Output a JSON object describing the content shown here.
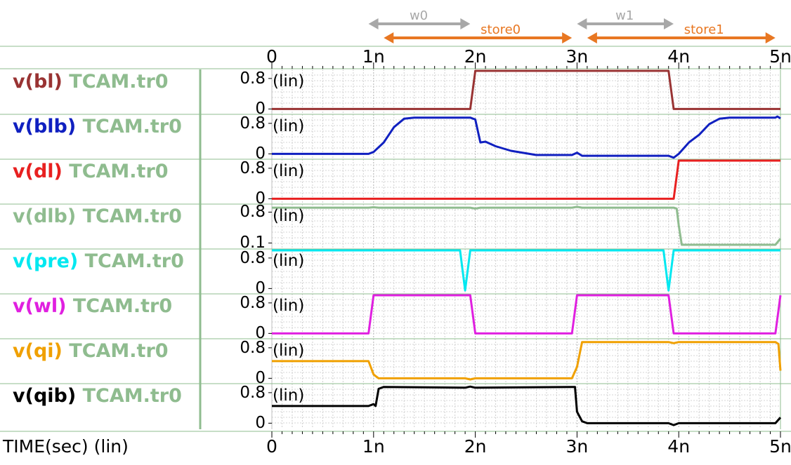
{
  "chart_data": {
    "type": "line",
    "x_axis": {
      "title": "TIME(sec) (lin)",
      "range": [
        0,
        5
      ],
      "unit_suffix": "n",
      "tick_labels": [
        "0",
        "1n",
        "2n",
        "3n",
        "4n",
        "5n"
      ],
      "grid": true
    },
    "annotations": [
      {
        "label": "w0",
        "from": 0.95,
        "to": 1.95,
        "color": "#a8a8a8"
      },
      {
        "label": "store0",
        "from": 1.1,
        "to": 2.95,
        "color": "#e87722"
      },
      {
        "label": "w1",
        "from": 3.0,
        "to": 3.95,
        "color": "#a8a8a8"
      },
      {
        "label": "store1",
        "from": 3.1,
        "to": 4.95,
        "color": "#e87722"
      }
    ],
    "panels": [
      {
        "signal": "v(bl)",
        "file": "TCAM.tr0",
        "color": "#993333",
        "scale_label": "(lin)",
        "y_tick_labels": [
          "0.8",
          "0"
        ],
        "y_ticks": [
          0.8,
          0
        ],
        "ylim": [
          -0.03,
          1.0
        ],
        "points": [
          [
            0,
            0
          ],
          [
            1.95,
            0
          ],
          [
            2.0,
            1.0
          ],
          [
            3.9,
            1.0
          ],
          [
            3.95,
            0
          ],
          [
            5,
            0
          ]
        ]
      },
      {
        "signal": "v(blb)",
        "file": "TCAM.tr0",
        "color": "#1020c0",
        "scale_label": "(lin)",
        "y_tick_labels": [
          "0.8",
          "0"
        ],
        "y_ticks": [
          0.8,
          0
        ],
        "ylim": [
          -0.03,
          1.0
        ],
        "points": [
          [
            0,
            0
          ],
          [
            0.95,
            0
          ],
          [
            1.0,
            0.05
          ],
          [
            1.1,
            0.3
          ],
          [
            1.2,
            0.7
          ],
          [
            1.3,
            0.92
          ],
          [
            1.4,
            0.95
          ],
          [
            1.95,
            0.95
          ],
          [
            2.0,
            0.9
          ],
          [
            2.05,
            0.3
          ],
          [
            2.1,
            0.32
          ],
          [
            2.2,
            0.2
          ],
          [
            2.35,
            0.08
          ],
          [
            2.6,
            -0.03
          ],
          [
            2.95,
            -0.03
          ],
          [
            3.0,
            0.03
          ],
          [
            3.05,
            -0.05
          ],
          [
            3.5,
            -0.05
          ],
          [
            3.9,
            -0.05
          ],
          [
            3.95,
            -0.1
          ],
          [
            4.0,
            0.0
          ],
          [
            4.1,
            0.3
          ],
          [
            4.2,
            0.5
          ],
          [
            4.3,
            0.78
          ],
          [
            4.4,
            0.92
          ],
          [
            4.5,
            0.95
          ],
          [
            4.95,
            0.95
          ],
          [
            4.97,
            0.98
          ],
          [
            5.0,
            0.93
          ]
        ]
      },
      {
        "signal": "v(dl)",
        "file": "TCAM.tr0",
        "color": "#e82020",
        "scale_label": "(lin)",
        "y_tick_labels": [
          "0.8",
          "0"
        ],
        "y_ticks": [
          0.8,
          0
        ],
        "ylim": [
          -0.03,
          1.0
        ],
        "points": [
          [
            0,
            0
          ],
          [
            3.95,
            0
          ],
          [
            4.0,
            1.0
          ],
          [
            5,
            1.0
          ]
        ]
      },
      {
        "signal": "v(dlb)",
        "file": "TCAM.tr0",
        "color": "#8fbc8f",
        "scale_label": "(lin)",
        "y_tick_labels": [
          "0.8",
          "0.1"
        ],
        "y_ticks": [
          0.8,
          0.1
        ],
        "ylim": [
          0.06,
          0.95
        ],
        "points": [
          [
            0,
            0.9
          ],
          [
            0.95,
            0.9
          ],
          [
            1.0,
            0.91
          ],
          [
            1.05,
            0.9
          ],
          [
            1.95,
            0.9
          ],
          [
            2.0,
            0.88
          ],
          [
            2.05,
            0.9
          ],
          [
            2.95,
            0.9
          ],
          [
            3.0,
            0.92
          ],
          [
            3.05,
            0.9
          ],
          [
            3.95,
            0.9
          ],
          [
            3.98,
            0.88
          ],
          [
            4.0,
            0.5
          ],
          [
            4.03,
            0.06
          ],
          [
            4.95,
            0.06
          ],
          [
            5.0,
            0.2
          ]
        ]
      },
      {
        "signal": "v(pre)",
        "file": "TCAM.tr0",
        "color": "#00e8f0",
        "scale_label": "(lin)",
        "y_tick_labels": [
          "0.8",
          "0"
        ],
        "y_ticks": [
          0.8,
          0
        ],
        "ylim": [
          -0.03,
          1.0
        ],
        "points": [
          [
            0,
            1.0
          ],
          [
            1.85,
            1.0
          ],
          [
            1.9,
            -0.05
          ],
          [
            1.95,
            1.0
          ],
          [
            3.85,
            1.0
          ],
          [
            3.9,
            -0.05
          ],
          [
            3.95,
            1.0
          ],
          [
            5,
            1.0
          ]
        ]
      },
      {
        "signal": "v(wl)",
        "file": "TCAM.tr0",
        "color": "#e020e0",
        "scale_label": "(lin)",
        "y_tick_labels": [
          "0.8",
          "0"
        ],
        "y_ticks": [
          0.8,
          0
        ],
        "ylim": [
          -0.03,
          1.0
        ],
        "points": [
          [
            0,
            0
          ],
          [
            0.95,
            0
          ],
          [
            1.0,
            1.0
          ],
          [
            1.95,
            1.0
          ],
          [
            2.0,
            0
          ],
          [
            2.95,
            0
          ],
          [
            3.0,
            1.0
          ],
          [
            3.9,
            1.0
          ],
          [
            3.95,
            0
          ],
          [
            4.95,
            0
          ],
          [
            5.0,
            1.0
          ]
        ]
      },
      {
        "signal": "v(qi)",
        "file": "TCAM.tr0",
        "color": "#f0a000",
        "scale_label": "(lin)",
        "y_tick_labels": [
          "0.8",
          "0"
        ],
        "y_ticks": [
          0.8,
          0
        ],
        "ylim": [
          -0.03,
          1.0
        ],
        "points": [
          [
            0,
            0.45
          ],
          [
            0.95,
            0.45
          ],
          [
            1.0,
            0.1
          ],
          [
            1.05,
            0.0
          ],
          [
            1.9,
            0.0
          ],
          [
            1.95,
            -0.03
          ],
          [
            2.0,
            0.0
          ],
          [
            2.95,
            0.0
          ],
          [
            3.0,
            0.3
          ],
          [
            3.05,
            0.95
          ],
          [
            3.9,
            0.95
          ],
          [
            3.95,
            0.92
          ],
          [
            4.0,
            0.95
          ],
          [
            4.95,
            0.95
          ],
          [
            4.98,
            0.9
          ],
          [
            5.0,
            0.2
          ]
        ]
      },
      {
        "signal": "v(qib)",
        "file": "TCAM.tr0",
        "color": "#000000",
        "scale_label": "(lin)",
        "y_tick_labels": [
          "0.8",
          "0"
        ],
        "y_ticks": [
          0.8,
          0
        ],
        "ylim": [
          -0.03,
          1.0
        ],
        "points": [
          [
            0,
            0.45
          ],
          [
            0.95,
            0.45
          ],
          [
            1.0,
            0.5
          ],
          [
            1.02,
            0.45
          ],
          [
            1.05,
            0.9
          ],
          [
            1.1,
            0.95
          ],
          [
            1.9,
            0.93
          ],
          [
            1.95,
            0.96
          ],
          [
            2.0,
            0.93
          ],
          [
            2.95,
            0.95
          ],
          [
            2.98,
            0.95
          ],
          [
            3.0,
            0.3
          ],
          [
            3.05,
            0.05
          ],
          [
            3.1,
            0.0
          ],
          [
            3.9,
            0.0
          ],
          [
            3.95,
            -0.05
          ],
          [
            4.0,
            0.0
          ],
          [
            4.95,
            0.0
          ],
          [
            5.0,
            0.15
          ]
        ]
      }
    ]
  }
}
